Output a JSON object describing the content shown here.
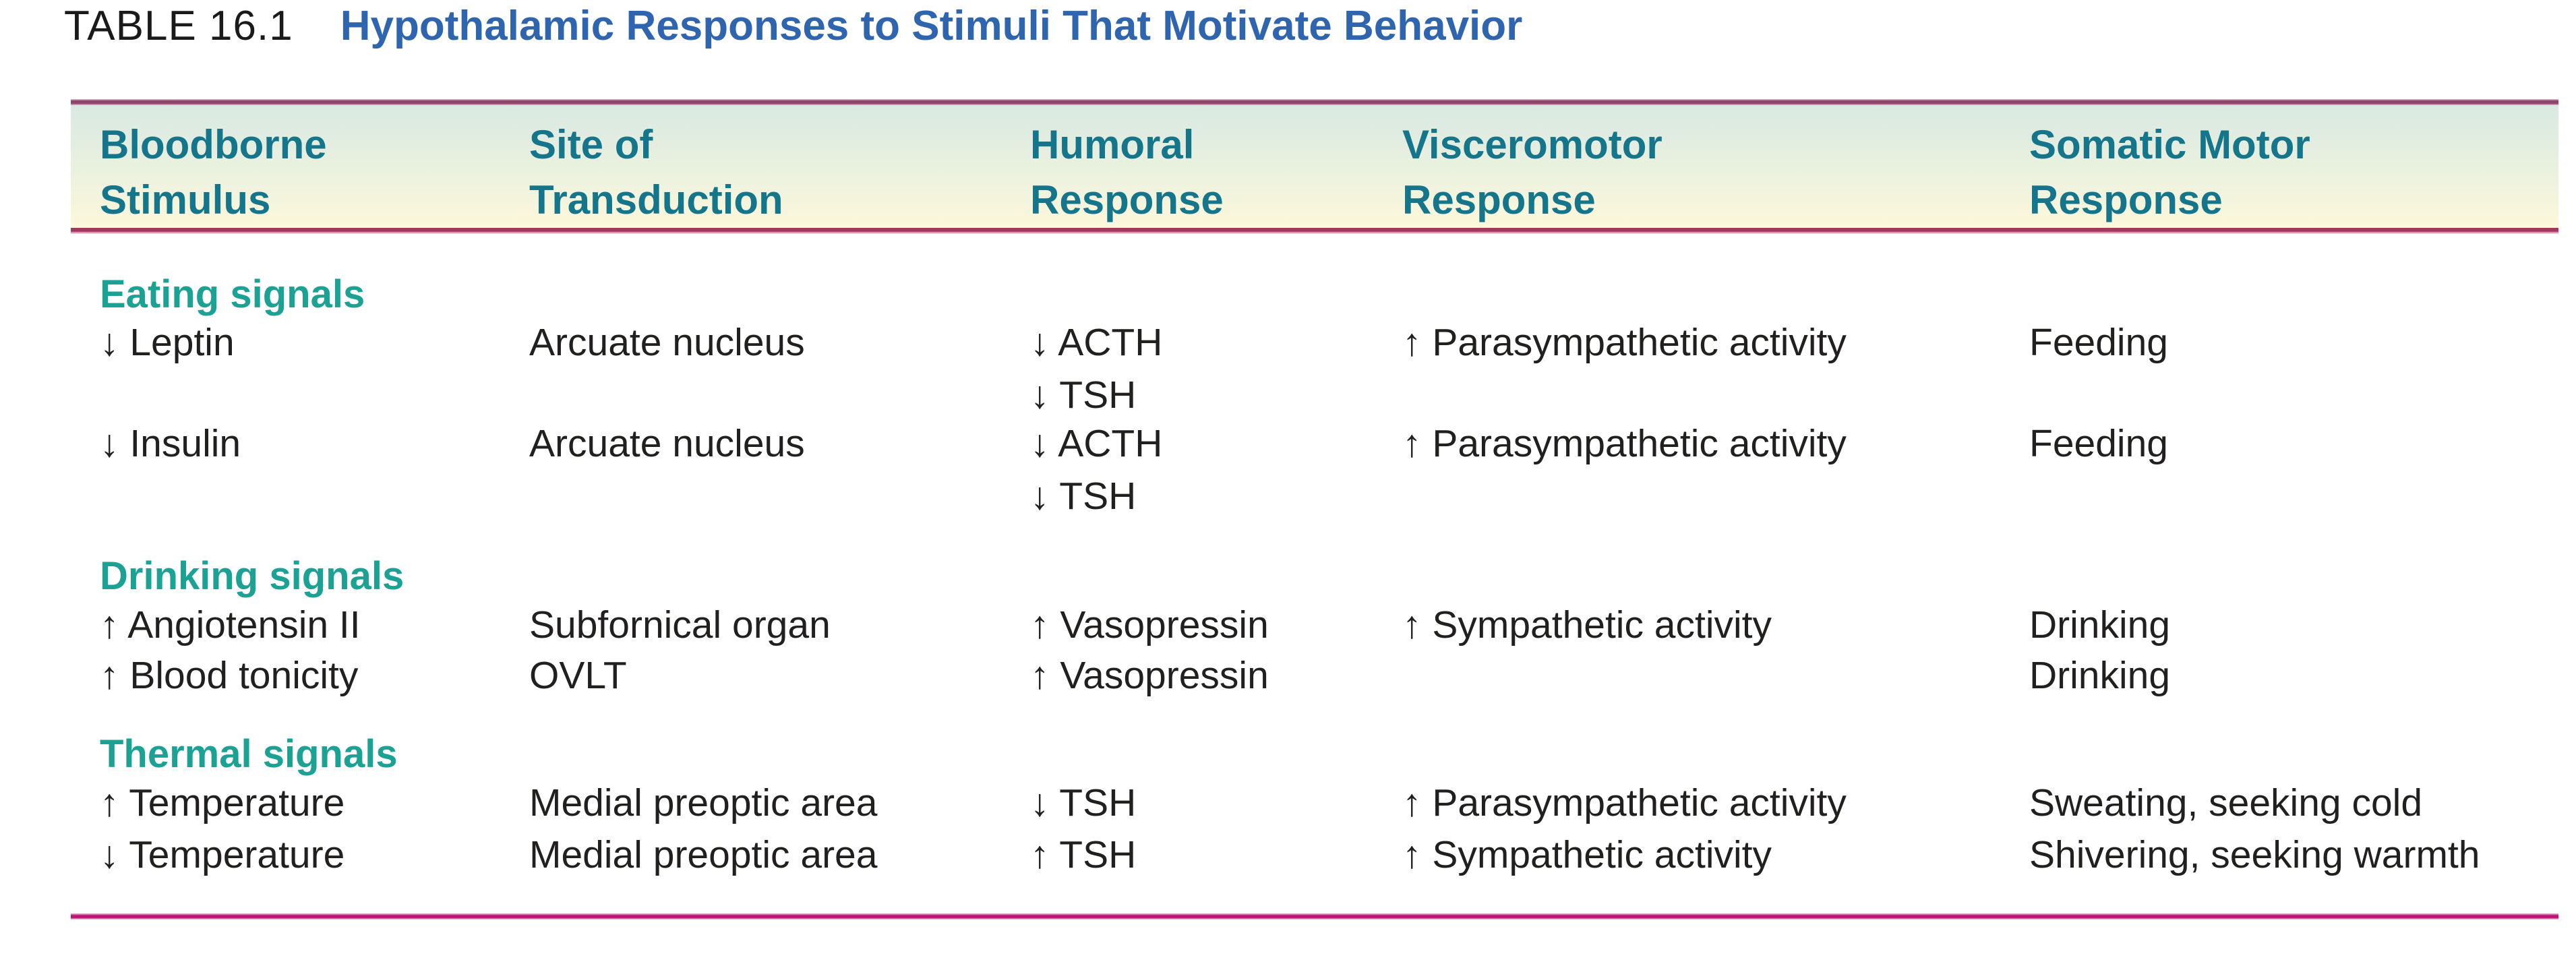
{
  "title": {
    "number": "TABLE 16.1",
    "caption": "Hypothalamic Responses to Stimuli That Motivate Behavior"
  },
  "columns": [
    {
      "line1": "Bloodborne",
      "line2": "Stimulus"
    },
    {
      "line1": "Site of",
      "line2": "Transduction"
    },
    {
      "line1": "Humoral",
      "line2": "Response"
    },
    {
      "line1": "Visceromotor",
      "line2": "Response"
    },
    {
      "line1": "Somatic Motor",
      "line2": "Response"
    }
  ],
  "sections": [
    {
      "label": "Eating signals",
      "rows": [
        {
          "stimulus": "↓ Leptin",
          "site": "Arcuate nucleus",
          "humoral": [
            "↓ ACTH",
            "↓ TSH"
          ],
          "visceromotor": "↑ Parasympathetic activity",
          "somatic": "Feeding"
        },
        {
          "stimulus": "↓ Insulin",
          "site": "Arcuate nucleus",
          "humoral": [
            "↓ ACTH",
            "↓ TSH"
          ],
          "visceromotor": "↑ Parasympathetic activity",
          "somatic": "Feeding"
        }
      ]
    },
    {
      "label": "Drinking signals",
      "rows": [
        {
          "stimulus": "↑ Angiotensin II",
          "site": "Subfornical organ",
          "humoral": [
            "↑ Vasopressin"
          ],
          "visceromotor": "↑ Sympathetic activity",
          "somatic": "Drinking"
        },
        {
          "stimulus": "↑ Blood tonicity",
          "site": "OVLT",
          "humoral": [
            "↑ Vasopressin"
          ],
          "visceromotor": "",
          "somatic": "Drinking"
        }
      ]
    },
    {
      "label": "Thermal signals",
      "rows": [
        {
          "stimulus": "↑ Temperature",
          "site": "Medial preoptic area",
          "humoral": [
            "↓ TSH"
          ],
          "visceromotor": "↑ Parasympathetic activity",
          "somatic": "Sweating, seeking cold"
        },
        {
          "stimulus": "↓ Temperature",
          "site": "Medial preoptic area",
          "humoral": [
            "↑ TSH"
          ],
          "visceromotor": "↑ Sympathetic activity",
          "somatic": "Shivering, seeking warmth"
        }
      ]
    }
  ],
  "colors": {
    "title_blue": "#2f64ae",
    "column_header_teal": "#15768b",
    "section_label_teal": "#1ba294",
    "body_text": "#221f1f",
    "top_rule_maroon": "#8e4468",
    "header_bottom_rule_maroon": "#9e3a60",
    "bottom_rule_magenta": "#bc1474",
    "header_gradient_top": "#d9e9e3",
    "header_gradient_bottom": "#fcf8dc"
  }
}
